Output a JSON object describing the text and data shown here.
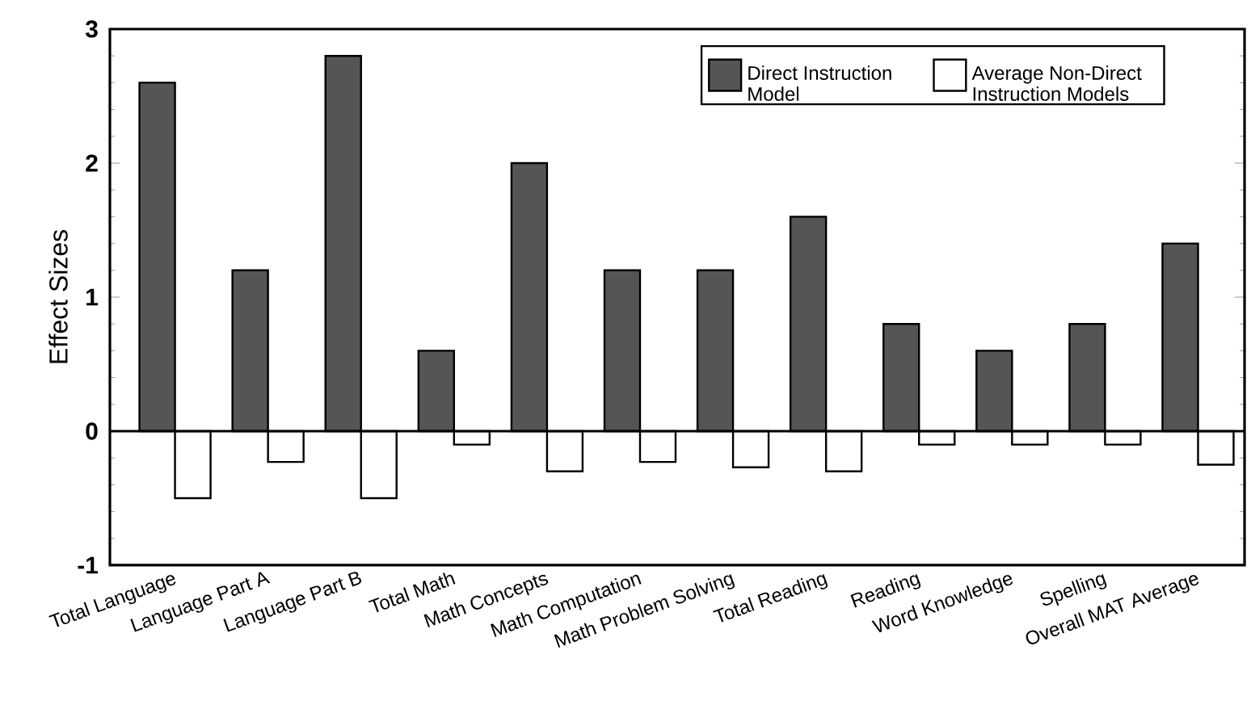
{
  "chart_data": {
    "type": "bar",
    "categories": [
      "Total Language",
      "Language Part A",
      "Language Part B",
      "Total Math",
      "Math Concepts",
      "Math Computation",
      "Math Problem Solving",
      "Total Reading",
      "Reading",
      "Word Knowledge",
      "Spelling",
      "Overall MAT Average"
    ],
    "series": [
      {
        "name": "Direct Instruction Model",
        "color": "#555555",
        "values": [
          2.6,
          1.2,
          2.8,
          0.6,
          2.0,
          1.2,
          1.2,
          1.6,
          0.8,
          0.6,
          0.8,
          1.4
        ]
      },
      {
        "name": "Average Non-Direct Instruction Models",
        "color": "#ffffff",
        "values": [
          -0.5,
          -0.23,
          -0.5,
          -0.1,
          -0.3,
          -0.23,
          -0.27,
          -0.3,
          -0.1,
          -0.1,
          -0.1,
          -0.25
        ]
      }
    ],
    "ylabel": "Effect Sizes",
    "ylim": [
      -1,
      3
    ],
    "yticks": [
      -1,
      0,
      1,
      2,
      3
    ],
    "legend": "top right"
  }
}
